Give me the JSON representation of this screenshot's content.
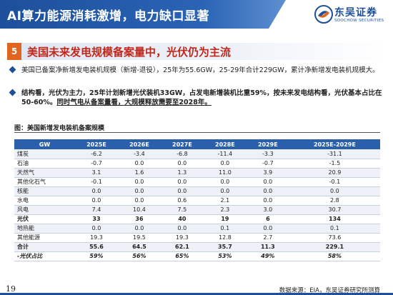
{
  "header": {
    "title": "AI算力能源消耗激增，电力缺口显著",
    "logo_cn": "东吴证券",
    "logo_en": "SOOCHOW SECURITIES",
    "color_primary": "#1d4f9b",
    "color_accent": "#e0661f"
  },
  "section": {
    "number": "5",
    "title": "美国未来发电规模备案量中，光伏仍为主流"
  },
  "bullets": [
    "美国已备案净新增发电装机规模（新增-退役），25年为55.6GW，25-29年合计229GW，累计净新增发电装机规模大。",
    {
      "part1": "结构看，光伏为主力，25年计划新增光伏装机33GW，占发电新增装机比重59%，按未来发电结构看，光伏基本占比在50-60%。",
      "part2": "同时气电从备案量看，大规模释放需要至2028年。"
    }
  ],
  "chart_caption": "图：美国新增发电装机备案规模",
  "table": {
    "headers": [
      "GW",
      "2025E",
      "2026E",
      "2027E",
      "2028E",
      "2029E",
      "2025E-2029E"
    ],
    "rows": [
      {
        "label": "煤炭",
        "values": [
          "-6.2",
          "-3.4",
          "-6.8",
          "-11.4",
          "-3.3",
          "-31.1"
        ],
        "style": ""
      },
      {
        "label": "石油",
        "values": [
          "-0.7",
          "0.0",
          "0.0",
          "0.0",
          "-0.7",
          "-1.5"
        ],
        "style": ""
      },
      {
        "label": "天然气",
        "values": [
          "3.1",
          "1.6",
          "1.3",
          "11.0",
          "3.9",
          "20.9"
        ],
        "style": ""
      },
      {
        "label": "其他化石气",
        "values": [
          "-0.1",
          "0.0",
          "0.0",
          "0.0",
          "0.0",
          "-0.1"
        ],
        "style": ""
      },
      {
        "label": "核能",
        "values": [
          "0.0",
          "0.0",
          "0.0",
          "0.0",
          "0.0",
          "0.0"
        ],
        "style": ""
      },
      {
        "label": "水电",
        "values": [
          "0.0",
          "0.0",
          "0.6",
          "2.1",
          "0.0",
          "2.8"
        ],
        "style": ""
      },
      {
        "label": "风电",
        "values": [
          "7.4",
          "10.4",
          "7.5",
          "2.3",
          "3.0",
          "30.7"
        ],
        "style": ""
      },
      {
        "label": "光伏",
        "values": [
          "33",
          "36",
          "40",
          "19",
          "6",
          "134"
        ],
        "style": "bold"
      },
      {
        "label": "地热能",
        "values": [
          "0.0",
          "0.0",
          "0.0",
          "0.1",
          "0.0",
          "0.1"
        ],
        "style": ""
      },
      {
        "label": "其他能源",
        "values": [
          "19.3",
          "19.5",
          "19.3",
          "12.8",
          "2.7",
          "73.6"
        ],
        "style": ""
      },
      {
        "label": "合计",
        "values": [
          "55.6",
          "64.5",
          "62.1",
          "35.7",
          "11.3",
          "229.1"
        ],
        "style": "total"
      },
      {
        "label": "-光伏占比",
        "values": [
          "59%",
          "56%",
          "65%",
          "53%",
          "49%",
          "58%"
        ],
        "style": "pct"
      }
    ]
  },
  "footer": {
    "page_number": "19",
    "source": "数据来源：EIA，东吴证券研究所测算"
  }
}
